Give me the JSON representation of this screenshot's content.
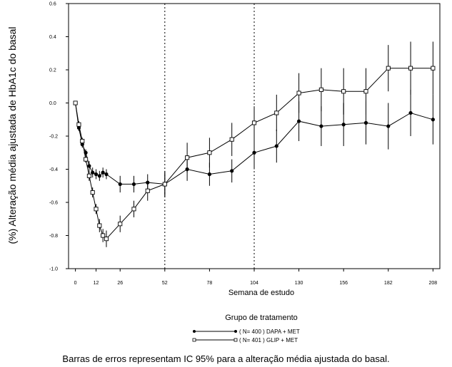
{
  "chart_data": {
    "type": "line",
    "ylabel": "(%) Alteração média ajustada de HbA1c do basal",
    "xlabel": "Semana de estudo",
    "ylim": [
      -1.0,
      0.6
    ],
    "xlim": [
      -4,
      212
    ],
    "y_ticks": [
      "0.6",
      "0.4",
      "0.2",
      "0.0",
      "-0.2",
      "-0.4",
      "-0.6",
      "-0.8",
      "-1.0"
    ],
    "y_tick_values": [
      0.6,
      0.4,
      0.2,
      0.0,
      -0.2,
      -0.4,
      -0.6,
      -0.8,
      -1.0
    ],
    "x_ticks": [
      "0",
      "12",
      "26",
      "52",
      "78",
      "104",
      "130",
      "156",
      "182",
      "208"
    ],
    "x_tick_values": [
      0,
      12,
      26,
      52,
      78,
      104,
      130,
      156,
      182,
      208
    ],
    "vlines": [
      52,
      104
    ],
    "legend_title": "Grupo de tratamento",
    "series": [
      {
        "name": "( N= 400 ) DAPA + MET",
        "marker": "filled-circle",
        "x": [
          0,
          2,
          4,
          6,
          8,
          10,
          12,
          14,
          16,
          18,
          26,
          34,
          42,
          52,
          65,
          78,
          91,
          104,
          117,
          130,
          143,
          156,
          169,
          182,
          195,
          208
        ],
        "y": [
          0.0,
          -0.15,
          -0.25,
          -0.3,
          -0.38,
          -0.42,
          -0.43,
          -0.44,
          -0.42,
          -0.43,
          -0.49,
          -0.49,
          -0.48,
          -0.49,
          -0.4,
          -0.43,
          -0.41,
          -0.3,
          -0.26,
          -0.11,
          -0.14,
          -0.13,
          -0.12,
          -0.14,
          -0.06,
          -0.1
        ],
        "err": [
          0.0,
          0.02,
          0.02,
          0.02,
          0.03,
          0.03,
          0.03,
          0.03,
          0.03,
          0.03,
          0.05,
          0.05,
          0.05,
          0.07,
          0.07,
          0.07,
          0.07,
          0.1,
          0.1,
          0.12,
          0.12,
          0.13,
          0.13,
          0.14,
          0.14,
          0.15
        ]
      },
      {
        "name": "( N= 401 ) GLIP + MET",
        "marker": "open-square",
        "x": [
          0,
          2,
          4,
          6,
          8,
          10,
          12,
          14,
          16,
          18,
          26,
          34,
          42,
          52,
          65,
          78,
          91,
          104,
          117,
          130,
          143,
          156,
          169,
          182,
          195,
          208
        ],
        "y": [
          0.0,
          -0.13,
          -0.23,
          -0.34,
          -0.44,
          -0.54,
          -0.64,
          -0.74,
          -0.8,
          -0.82,
          -0.73,
          -0.64,
          -0.53,
          -0.49,
          -0.33,
          -0.3,
          -0.22,
          -0.12,
          -0.06,
          0.06,
          0.08,
          0.07,
          0.07,
          0.21,
          0.21,
          0.21
        ],
        "err": [
          0.0,
          0.02,
          0.02,
          0.02,
          0.03,
          0.03,
          0.03,
          0.04,
          0.04,
          0.05,
          0.05,
          0.05,
          0.06,
          0.08,
          0.09,
          0.09,
          0.1,
          0.1,
          0.11,
          0.12,
          0.13,
          0.14,
          0.14,
          0.14,
          0.16,
          0.16
        ]
      }
    ]
  },
  "caption": "Barras de erros representam IC 95% para a alteração média ajustada do basal."
}
